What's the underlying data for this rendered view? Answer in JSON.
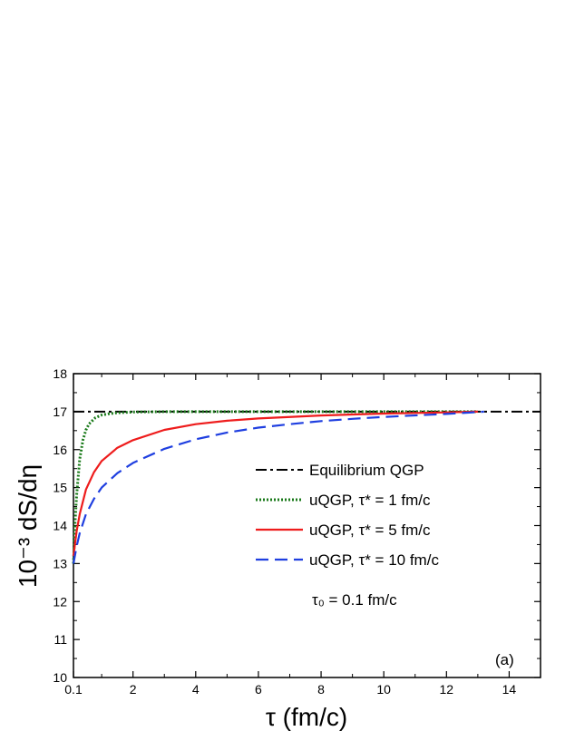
{
  "chart_data": {
    "type": "line",
    "xlabel": "τ (fm/c)",
    "ylabel": "10⁻³ dS/dη",
    "xlim": [
      0.1,
      15
    ],
    "ylim": [
      10,
      18
    ],
    "x_ticks": [
      {
        "value": 0.1,
        "label": "0.1"
      },
      {
        "value": 2,
        "label": "2"
      },
      {
        "value": 4,
        "label": "4"
      },
      {
        "value": 6,
        "label": "6"
      },
      {
        "value": 8,
        "label": "8"
      },
      {
        "value": 10,
        "label": "10"
      },
      {
        "value": 12,
        "label": "12"
      },
      {
        "value": 14,
        "label": "14"
      }
    ],
    "y_ticks": [
      {
        "value": 10,
        "label": "10"
      },
      {
        "value": 11,
        "label": "11"
      },
      {
        "value": 12,
        "label": "12"
      },
      {
        "value": 13,
        "label": "13"
      },
      {
        "value": 14,
        "label": "14"
      },
      {
        "value": 15,
        "label": "15"
      },
      {
        "value": 16,
        "label": "16"
      },
      {
        "value": 17,
        "label": "17"
      },
      {
        "value": 18,
        "label": "18"
      }
    ],
    "grid": false,
    "legend_position": "center-right",
    "series": [
      {
        "name": "Equilibrium QGP",
        "color": "#000000",
        "style": "dash-dot",
        "x": [
          0.1,
          15
        ],
        "y": [
          17.0,
          17.0
        ]
      },
      {
        "name": "uQGP, τ* = 1 fm/c",
        "color": "#1a7a1a",
        "style": "dotted",
        "x": [
          0.1,
          0.15,
          0.2,
          0.3,
          0.4,
          0.5,
          0.6,
          0.8,
          1.0,
          1.2,
          1.5,
          2.0,
          3.0,
          5.0,
          8.0,
          12.0,
          13.0
        ],
        "y": [
          13.0,
          14.05,
          14.8,
          15.75,
          16.25,
          16.52,
          16.68,
          16.84,
          16.91,
          16.94,
          16.97,
          16.99,
          17.0,
          17.0,
          17.0,
          17.0,
          17.0
        ]
      },
      {
        "name": "uQGP, τ* = 5 fm/c",
        "color": "#ee1c1c",
        "style": "solid",
        "x": [
          0.1,
          0.2,
          0.3,
          0.5,
          0.75,
          1.0,
          1.5,
          2.0,
          3.0,
          4.0,
          5.0,
          6.0,
          8.0,
          10.0,
          12.0,
          13.0
        ],
        "y": [
          13.2,
          13.85,
          14.3,
          14.95,
          15.4,
          15.7,
          16.05,
          16.25,
          16.52,
          16.67,
          16.76,
          16.82,
          16.9,
          16.95,
          16.98,
          17.0
        ]
      },
      {
        "name": "uQGP, τ* = 10 fm/c",
        "color": "#1f3fe0",
        "style": "dashed",
        "x": [
          0.1,
          0.2,
          0.3,
          0.5,
          0.75,
          1.0,
          1.5,
          2.0,
          3.0,
          4.0,
          5.0,
          6.0,
          7.0,
          8.0,
          9.0,
          10.0,
          12.0,
          13.2
        ],
        "y": [
          13.0,
          13.45,
          13.8,
          14.3,
          14.7,
          15.0,
          15.38,
          15.65,
          16.02,
          16.27,
          16.45,
          16.58,
          16.67,
          16.75,
          16.81,
          16.86,
          16.94,
          17.0
        ]
      }
    ],
    "annotations": [
      {
        "text": "τ₀ = 0.1 fm/c"
      },
      {
        "text": "(a)"
      }
    ]
  }
}
